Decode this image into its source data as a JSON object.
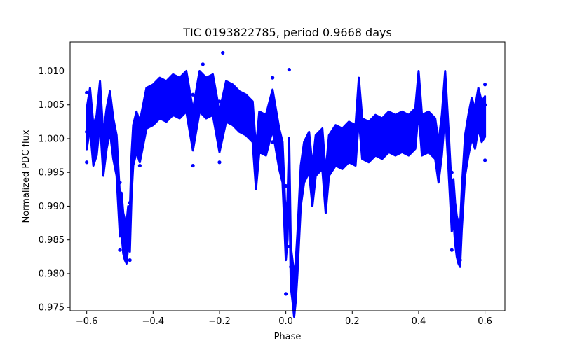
{
  "chart_data": {
    "type": "scatter",
    "title": "TIC 0193822785, period 0.9668 days",
    "xlabel": "Phase",
    "ylabel": "Normalized PDC flux",
    "xlim": [
      -0.65,
      0.66
    ],
    "ylim": [
      0.9745,
      1.0143
    ],
    "x_ticks": [
      -0.6,
      -0.4,
      -0.2,
      0.0,
      0.2,
      0.4,
      0.6
    ],
    "x_tick_labels": [
      "−0.6",
      "−0.4",
      "−0.2",
      "0.0",
      "0.2",
      "0.4",
      "0.6"
    ],
    "y_ticks": [
      0.975,
      0.98,
      0.985,
      0.99,
      0.995,
      1.0,
      1.005,
      1.01
    ],
    "y_tick_labels": [
      "0.975",
      "0.980",
      "0.985",
      "0.990",
      "0.995",
      "1.000",
      "1.005",
      "1.010"
    ],
    "grid": false,
    "legend": "none",
    "marker_color": "#0000ff",
    "series": [
      {
        "values": [
          {
            "x": -0.6,
            "y": 1.001
          },
          {
            "x": -0.59,
            "y": 1.0045
          },
          {
            "x": -0.58,
            "y": 0.999
          },
          {
            "x": -0.57,
            "y": 1.0005
          },
          {
            "x": -0.56,
            "y": 1.0055
          },
          {
            "x": -0.55,
            "y": 0.9975
          },
          {
            "x": -0.54,
            "y": 1.0015
          },
          {
            "x": -0.53,
            "y": 1.004
          },
          {
            "x": -0.52,
            "y": 1.0
          },
          {
            "x": -0.51,
            "y": 0.9975
          },
          {
            "x": -0.5,
            "y": 0.9935
          },
          {
            "x": -0.495,
            "y": 0.989
          },
          {
            "x": -0.49,
            "y": 0.986
          },
          {
            "x": -0.485,
            "y": 0.985
          },
          {
            "x": -0.48,
            "y": 0.9845
          },
          {
            "x": -0.475,
            "y": 0.987
          },
          {
            "x": -0.47,
            "y": 0.9905
          },
          {
            "x": -0.465,
            "y": 0.9945
          },
          {
            "x": -0.46,
            "y": 0.999
          },
          {
            "x": -0.45,
            "y": 1.001
          },
          {
            "x": -0.44,
            "y": 1.003
          },
          {
            "x": -0.42,
            "y": 1.0045
          },
          {
            "x": -0.4,
            "y": 1.005
          },
          {
            "x": -0.38,
            "y": 1.006
          },
          {
            "x": -0.36,
            "y": 1.0055
          },
          {
            "x": -0.34,
            "y": 1.0065
          },
          {
            "x": -0.32,
            "y": 1.006
          },
          {
            "x": -0.3,
            "y": 1.007
          },
          {
            "x": -0.28,
            "y": 1.0065
          },
          {
            "x": -0.26,
            "y": 1.007
          },
          {
            "x": -0.24,
            "y": 1.006
          },
          {
            "x": -0.22,
            "y": 1.0065
          },
          {
            "x": -0.2,
            "y": 1.0055
          },
          {
            "x": -0.18,
            "y": 1.0055
          },
          {
            "x": -0.16,
            "y": 1.005
          },
          {
            "x": -0.14,
            "y": 1.004
          },
          {
            "x": -0.12,
            "y": 1.0035
          },
          {
            "x": -0.1,
            "y": 1.0025
          },
          {
            "x": -0.08,
            "y": 1.001
          },
          {
            "x": -0.06,
            "y": 1.0005
          },
          {
            "x": -0.04,
            "y": 0.9995
          },
          {
            "x": -0.02,
            "y": 0.9985
          },
          {
            "x": -0.01,
            "y": 0.9965
          },
          {
            "x": 0.0,
            "y": 0.993
          },
          {
            "x": 0.005,
            "y": 0.988
          },
          {
            "x": 0.01,
            "y": 0.984
          },
          {
            "x": 0.015,
            "y": 0.981
          },
          {
            "x": 0.02,
            "y": 0.979
          },
          {
            "x": 0.025,
            "y": 0.9775
          },
          {
            "x": 0.03,
            "y": 0.979
          },
          {
            "x": 0.035,
            "y": 0.983
          },
          {
            "x": 0.04,
            "y": 0.988
          },
          {
            "x": 0.045,
            "y": 0.993
          },
          {
            "x": 0.055,
            "y": 0.9965
          },
          {
            "x": 0.07,
            "y": 0.998
          },
          {
            "x": 0.09,
            "y": 0.9975
          },
          {
            "x": 0.11,
            "y": 0.9985
          },
          {
            "x": 0.13,
            "y": 0.9975
          },
          {
            "x": 0.15,
            "y": 0.999
          },
          {
            "x": 0.17,
            "y": 0.9985
          },
          {
            "x": 0.19,
            "y": 0.9995
          },
          {
            "x": 0.21,
            "y": 0.999
          },
          {
            "x": 0.23,
            "y": 1.0
          },
          {
            "x": 0.25,
            "y": 0.9995
          },
          {
            "x": 0.27,
            "y": 1.0005
          },
          {
            "x": 0.29,
            "y": 1.0
          },
          {
            "x": 0.31,
            "y": 1.001
          },
          {
            "x": 0.33,
            "y": 1.0005
          },
          {
            "x": 0.35,
            "y": 1.001
          },
          {
            "x": 0.37,
            "y": 1.0005
          },
          {
            "x": 0.39,
            "y": 1.0015
          },
          {
            "x": 0.41,
            "y": 1.0005
          },
          {
            "x": 0.43,
            "y": 1.001
          },
          {
            "x": 0.45,
            "y": 1.0
          },
          {
            "x": 0.47,
            "y": 1.0005
          },
          {
            "x": 0.49,
            "y": 0.9985
          },
          {
            "x": 0.5,
            "y": 0.995
          },
          {
            "x": 0.505,
            "y": 0.991
          },
          {
            "x": 0.51,
            "y": 0.9875
          },
          {
            "x": 0.515,
            "y": 0.9855
          },
          {
            "x": 0.52,
            "y": 0.9845
          },
          {
            "x": 0.525,
            "y": 0.986
          },
          {
            "x": 0.53,
            "y": 0.9895
          },
          {
            "x": 0.535,
            "y": 0.9935
          },
          {
            "x": 0.54,
            "y": 0.9975
          },
          {
            "x": 0.55,
            "y": 1.0005
          },
          {
            "x": 0.56,
            "y": 1.003
          },
          {
            "x": 0.57,
            "y": 1.0015
          },
          {
            "x": 0.58,
            "y": 1.0045
          },
          {
            "x": 0.59,
            "y": 1.0025
          },
          {
            "x": 0.6,
            "y": 1.005
          },
          {
            "x": -0.28,
            "y": 0.996
          },
          {
            "x": -0.25,
            "y": 1.011
          },
          {
            "x": -0.19,
            "y": 1.0127
          },
          {
            "x": -0.2,
            "y": 0.9965
          },
          {
            "x": -0.04,
            "y": 1.009
          },
          {
            "x": 0.01,
            "y": 1.0102
          },
          {
            "x": -0.47,
            "y": 0.982
          },
          {
            "x": 0.525,
            "y": 0.982
          },
          {
            "x": 0.025,
            "y": 0.9757
          },
          {
            "x": 0.0,
            "y": 0.977
          },
          {
            "x": -0.5,
            "y": 0.9835
          },
          {
            "x": 0.5,
            "y": 0.9835
          },
          {
            "x": -0.09,
            "y": 0.9955
          },
          {
            "x": 0.08,
            "y": 0.993
          },
          {
            "x": 0.12,
            "y": 0.992
          },
          {
            "x": 0.22,
            "y": 1.006
          },
          {
            "x": 0.4,
            "y": 1.007
          },
          {
            "x": 0.48,
            "y": 1.007
          },
          {
            "x": -0.6,
            "y": 1.0068
          },
          {
            "x": 0.6,
            "y": 1.008
          },
          {
            "x": -0.6,
            "y": 0.9965
          },
          {
            "x": 0.6,
            "y": 0.9968
          },
          {
            "x": -0.44,
            "y": 0.996
          },
          {
            "x": 0.46,
            "y": 0.9965
          }
        ]
      }
    ]
  }
}
